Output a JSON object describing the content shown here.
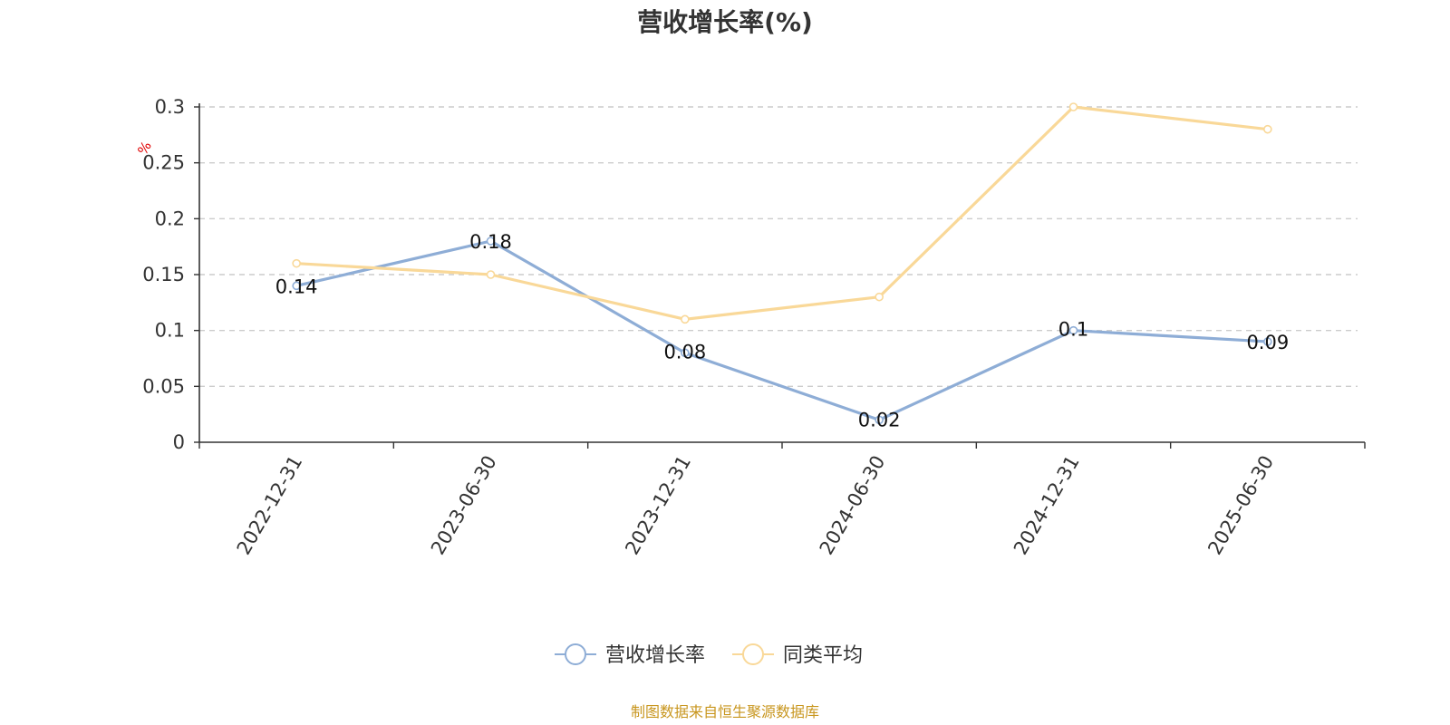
{
  "chart_data": {
    "type": "line",
    "title": "营收增长率(%)",
    "ylabel": "%",
    "categories": [
      "2022-12-31",
      "2023-06-30",
      "2023-12-31",
      "2024-06-30",
      "2024-12-31",
      "2025-06-30"
    ],
    "ylim": [
      0,
      0.3
    ],
    "yticks": [
      "0",
      "0.05",
      "0.1",
      "0.15",
      "0.2",
      "0.25",
      "0.3"
    ],
    "grid": true,
    "legend_position": "bottom-center",
    "series": [
      {
        "name": "营收增长率",
        "color": "#8eadd6",
        "values": [
          0.14,
          0.18,
          0.08,
          0.02,
          0.1,
          0.09
        ],
        "labels": [
          "0.14",
          "0.18",
          "0.08",
          "0.02",
          "0.1",
          "0.09"
        ]
      },
      {
        "name": "同类平均",
        "color": "#f9d898",
        "values": [
          0.16,
          0.15,
          0.11,
          0.13,
          0.3,
          0.28
        ]
      }
    ],
    "source": "制图数据来自恒生聚源数据库"
  }
}
